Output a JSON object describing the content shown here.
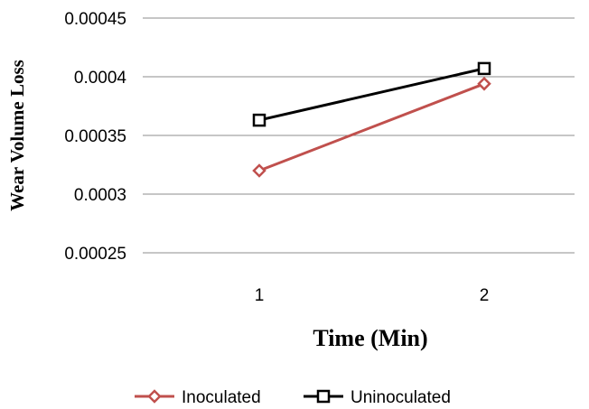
{
  "chart_data": {
    "type": "line",
    "title": "",
    "xlabel": "Time (Min)",
    "ylabel": "Wear Volume Loss",
    "x": [
      1,
      2
    ],
    "x_tick_labels": [
      "1",
      "2"
    ],
    "y_tick_labels": [
      "0.00025",
      "0.0003",
      "0.00035",
      "0.0004",
      "0.00045"
    ],
    "ylim": [
      0.00025,
      0.00045
    ],
    "grid": "horizontal",
    "legend_position": "bottom",
    "series": [
      {
        "name": "Inoculated",
        "values": [
          0.00032,
          0.000394
        ],
        "color": "#c0504d",
        "marker": "diamond"
      },
      {
        "name": "Uninoculated",
        "values": [
          0.000363,
          0.000407
        ],
        "color": "#000000",
        "marker": "square"
      }
    ]
  }
}
